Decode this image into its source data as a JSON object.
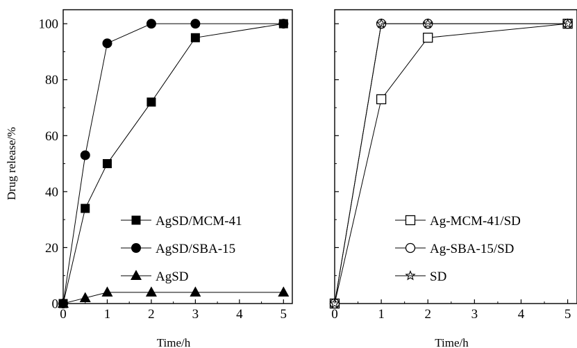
{
  "chart_data": [
    {
      "type": "line",
      "title": "",
      "xlabel": "Time/h",
      "ylabel": "Drug release/%",
      "xlim": [
        0,
        5.2
      ],
      "ylim": [
        0,
        105
      ],
      "xticks": [
        0,
        1,
        2,
        3,
        4,
        5
      ],
      "yticks": [
        0,
        20,
        40,
        60,
        80,
        100
      ],
      "xtick_labels": [
        "0",
        "1",
        "2",
        "3",
        "4",
        "5"
      ],
      "ytick_labels": [
        "0",
        "20",
        "40",
        "60",
        "80",
        "100"
      ],
      "grid": false,
      "legend_position": "bottom-right",
      "series": [
        {
          "name": "AgSD/MCM-41",
          "marker": "filled-square",
          "points": [
            [
              0,
              0
            ],
            [
              0.5,
              34
            ],
            [
              1,
              50
            ],
            [
              2,
              72
            ],
            [
              3,
              95
            ],
            [
              5,
              100
            ]
          ]
        },
        {
          "name": "AgSD/SBA-15",
          "marker": "filled-circle",
          "points": [
            [
              0,
              0
            ],
            [
              0.5,
              53
            ],
            [
              1,
              93
            ],
            [
              2,
              100
            ],
            [
              3,
              100
            ],
            [
              5,
              100
            ]
          ]
        },
        {
          "name": "AgSD",
          "marker": "filled-triangle",
          "points": [
            [
              0,
              0
            ],
            [
              0.5,
              2
            ],
            [
              1,
              4
            ],
            [
              2,
              4
            ],
            [
              3,
              4
            ],
            [
              5,
              4
            ]
          ]
        }
      ]
    },
    {
      "type": "line",
      "title": "",
      "xlabel": "Time/h",
      "ylabel": "",
      "xlim": [
        0,
        5.2
      ],
      "ylim": [
        0,
        105
      ],
      "xticks": [
        0,
        1,
        2,
        3,
        4,
        5
      ],
      "yticks": [
        0,
        20,
        40,
        60,
        80,
        100
      ],
      "xtick_labels": [
        "0",
        "1",
        "2",
        "3",
        "4",
        "5"
      ],
      "ytick_labels": [],
      "grid": false,
      "legend_position": "bottom-right",
      "series": [
        {
          "name": "Ag-MCM-41/SD",
          "marker": "open-square",
          "points": [
            [
              0,
              0
            ],
            [
              1,
              73
            ],
            [
              2,
              95
            ],
            [
              5,
              100
            ]
          ]
        },
        {
          "name": "Ag-SBA-15/SD",
          "marker": "open-circle",
          "points": [
            [
              0,
              0
            ],
            [
              1,
              100
            ],
            [
              2,
              100
            ],
            [
              5,
              100
            ]
          ]
        },
        {
          "name": "SD",
          "marker": "open-star",
          "points": [
            [
              0,
              0
            ],
            [
              1,
              100
            ],
            [
              2,
              100
            ],
            [
              5,
              100
            ]
          ]
        }
      ]
    }
  ]
}
